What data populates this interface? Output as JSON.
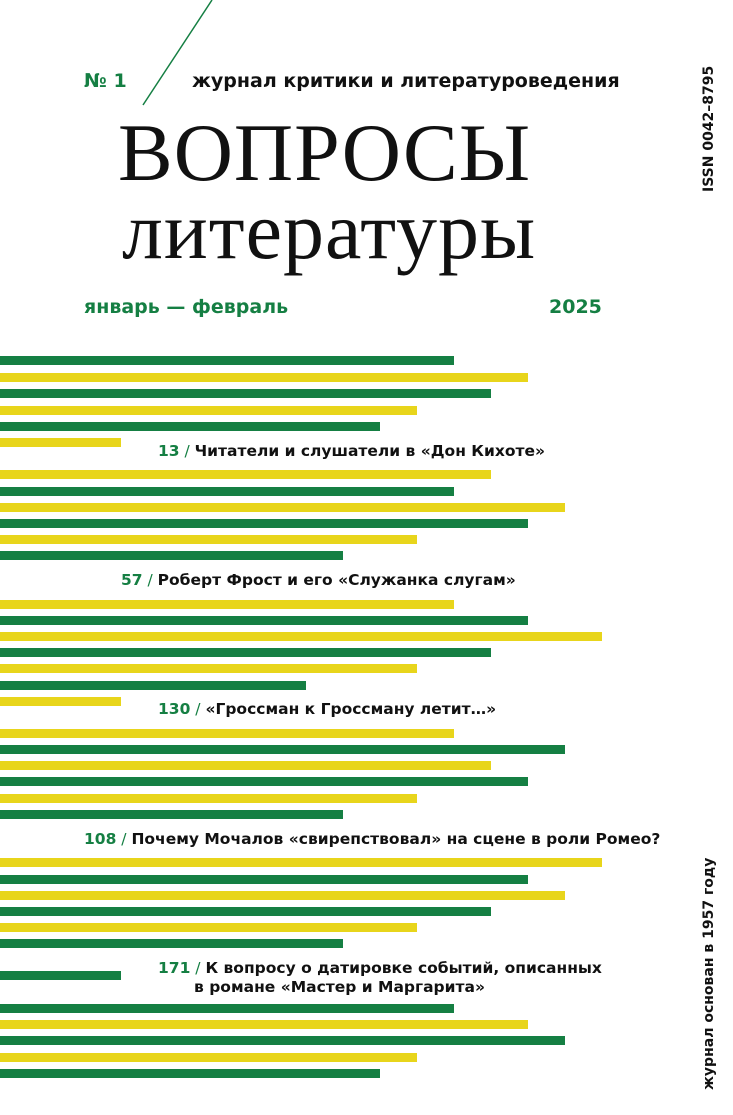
{
  "header": {
    "issue_number": "№ 1",
    "subtitle": "журнал критики и литературоведения",
    "title_line1": "ВОПРОСЫ",
    "title_line2": "литературы",
    "period": "январь — февраль",
    "year": "2025",
    "issn": "ISSN 0042–8795"
  },
  "spine_text": "журнал основан в 1957 году",
  "articles": [
    {
      "page": "13",
      "title": "Читатели и слушатели в «Дон Кихоте»"
    },
    {
      "page": "57",
      "title": "Роберт Фрост и его «Служанка слугам»"
    },
    {
      "page": "130",
      "title": "«Гроссман к Гроссману летит…»"
    },
    {
      "page": "108",
      "title": "Почему Мочалов «свирепствовал» на сцене в роли Ромео?"
    },
    {
      "page": "171",
      "title": "К вопросу о датировке событий, описанных",
      "title_line2": "в романе «Мастер и Маргарита»"
    }
  ],
  "colors": {
    "green": "#157f43",
    "yellow": "#e8d51b",
    "text": "#111111"
  }
}
